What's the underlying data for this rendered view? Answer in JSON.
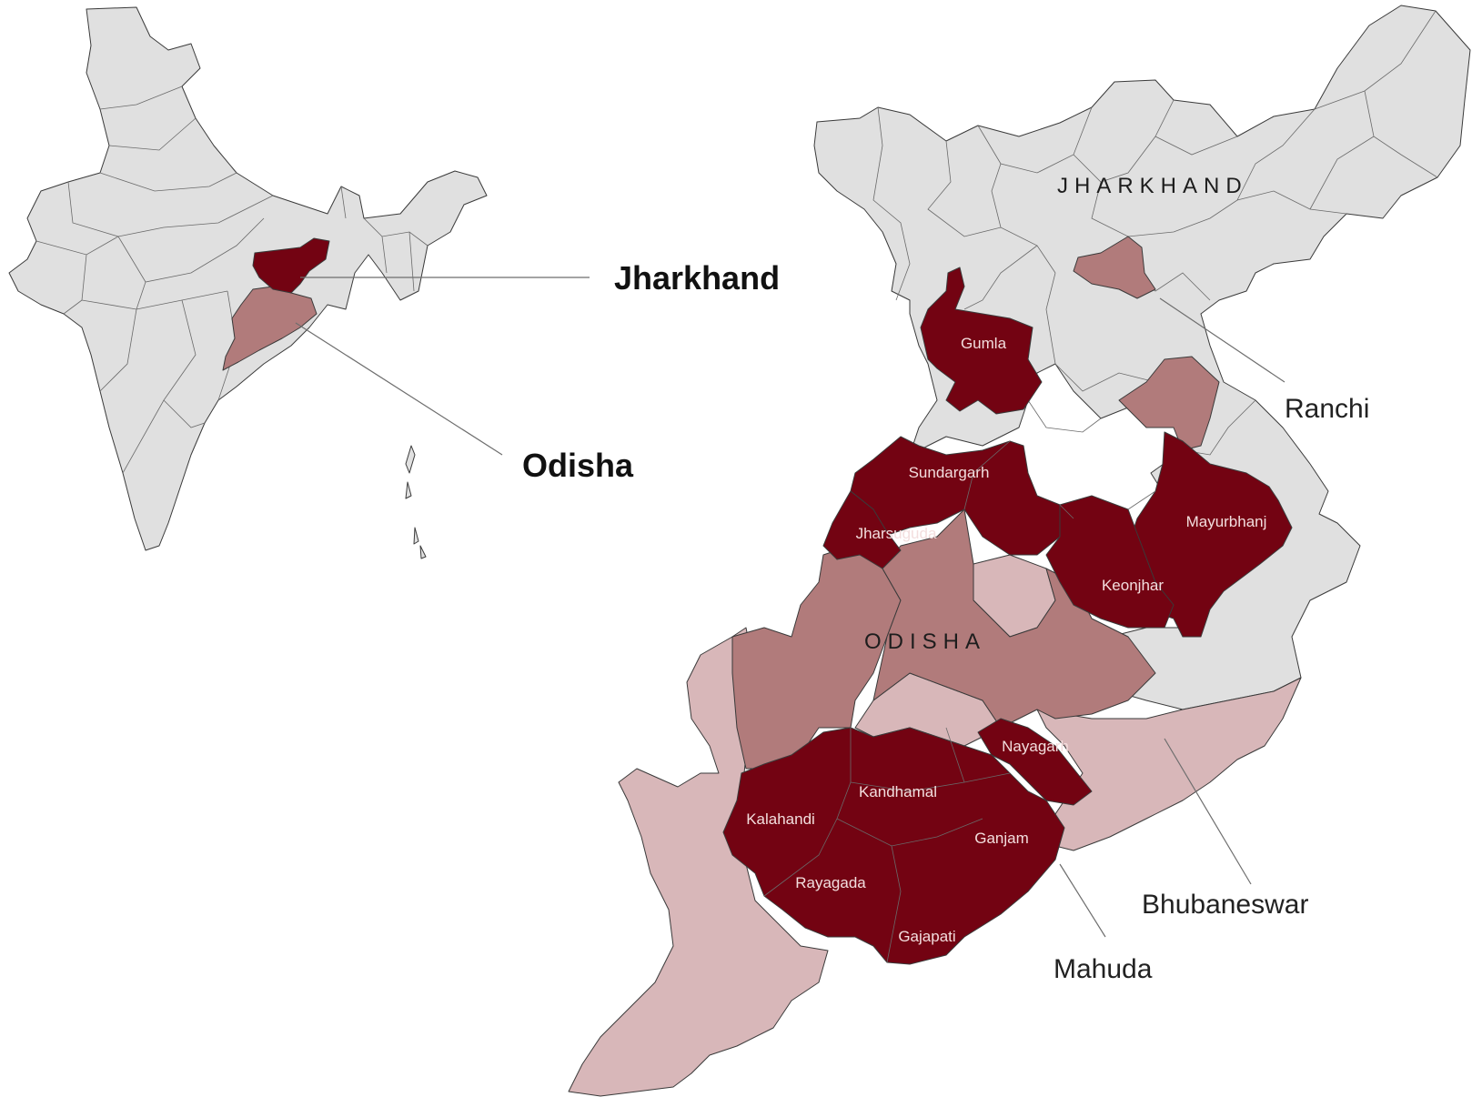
{
  "colors": {
    "background": "#ffffff",
    "base": "#e0e0e0",
    "high": "#730312",
    "medium": "#b17b7b",
    "low": "#d8b7b9",
    "border": "#3a3a3a"
  },
  "inset": {
    "jharkhand_label": "Jharkhand",
    "odisha_label": "Odisha"
  },
  "states": {
    "jharkhand": "JHARKHAND",
    "odisha": "ODISHA"
  },
  "districts": [
    {
      "name": "Gumla",
      "level": "high"
    },
    {
      "name": "Sundargarh",
      "level": "high"
    },
    {
      "name": "Jharsuguda",
      "level": "high"
    },
    {
      "name": "Mayurbhanj",
      "level": "high"
    },
    {
      "name": "Keonjhar",
      "level": "high"
    },
    {
      "name": "Nayagarh",
      "level": "high"
    },
    {
      "name": "Kandhamal",
      "level": "high"
    },
    {
      "name": "Kalahandi",
      "level": "high"
    },
    {
      "name": "Ganjam",
      "level": "high"
    },
    {
      "name": "Rayagada",
      "level": "high"
    },
    {
      "name": "Gajapati",
      "level": "high"
    }
  ],
  "places": {
    "ranchi": "Ranchi",
    "bhubaneswar": "Bhubaneswar",
    "mahuda": "Mahuda"
  }
}
